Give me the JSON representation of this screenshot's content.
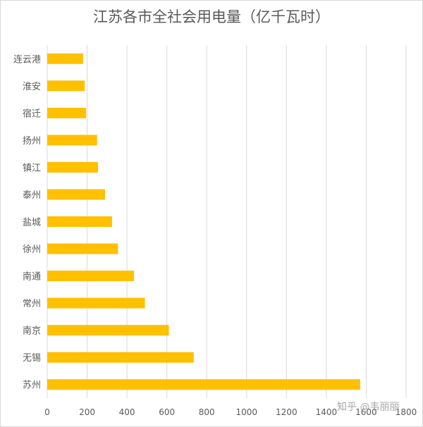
{
  "chart_data": {
    "type": "bar",
    "orientation": "horizontal",
    "title": "江苏各市全社会用电量（亿千瓦时）",
    "categories": [
      "连云港",
      "淮安",
      "宿迁",
      "扬州",
      "镇江",
      "泰州",
      "盐城",
      "徐州",
      "南通",
      "常州",
      "南京",
      "无锡",
      "苏州"
    ],
    "values": [
      180,
      188,
      195,
      250,
      255,
      290,
      325,
      355,
      435,
      490,
      610,
      735,
      1570
    ],
    "xlim": [
      0,
      1800
    ],
    "xticks": [
      "0",
      "200",
      "400",
      "600",
      "800",
      "1000",
      "1200",
      "1400",
      "1600",
      "1800"
    ],
    "grid": "vertical",
    "bar_color": "#FFC000",
    "grid_color": "#d9d9d9"
  },
  "watermark": "知乎 @韦丽丽"
}
